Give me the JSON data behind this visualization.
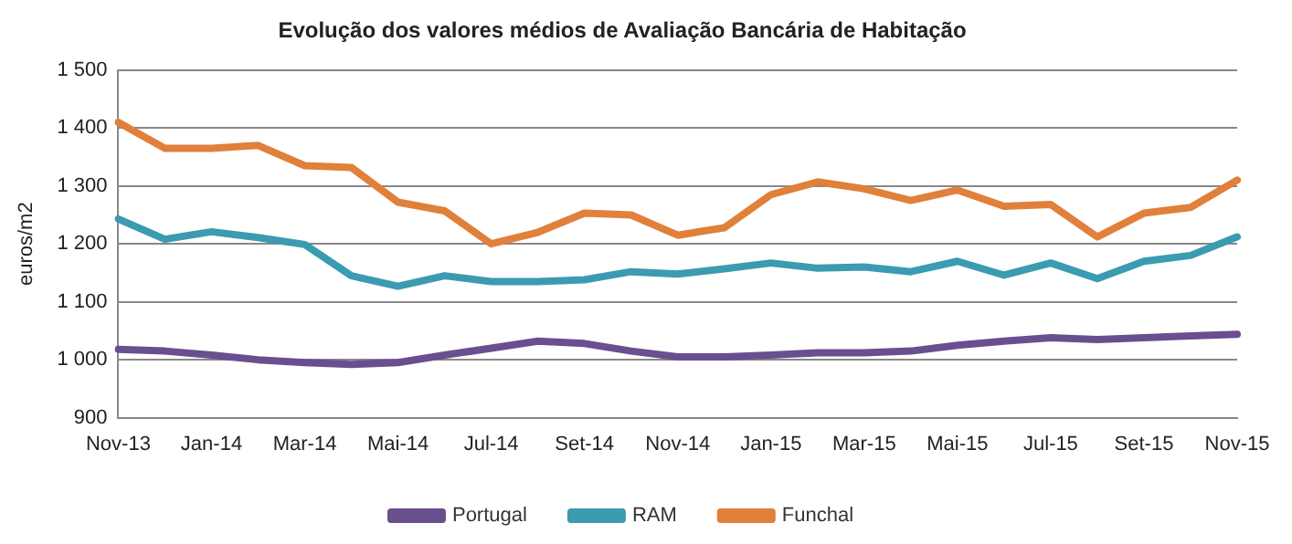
{
  "chart_data": {
    "type": "line",
    "title": "Evolução dos valores médios de Avaliação Bancária de Habitação",
    "ylabel": "euros/m2",
    "categories": [
      "Nov-13",
      null,
      "Jan-14",
      null,
      "Mar-14",
      null,
      "Mai-14",
      null,
      "Jul-14",
      null,
      "Set-14",
      null,
      "Nov-14",
      null,
      "Jan-15",
      null,
      "Mar-15",
      null,
      "Mai-15",
      null,
      "Jul-15",
      null,
      "Set-15",
      null,
      "Nov-15"
    ],
    "series": [
      {
        "name": "Portugal",
        "color": "#6a4f8f",
        "values": [
          1018,
          1015,
          1008,
          1000,
          995,
          992,
          995,
          1008,
          1020,
          1032,
          1028,
          1015,
          1005,
          1005,
          1008,
          1012,
          1012,
          1015,
          1025,
          1032,
          1038,
          1035,
          1038,
          1041,
          1044
        ]
      },
      {
        "name": "RAM",
        "color": "#3b9bb0",
        "values": [
          1243,
          1208,
          1221,
          1211,
          1199,
          1145,
          1127,
          1145,
          1135,
          1135,
          1138,
          1152,
          1148,
          1157,
          1167,
          1158,
          1160,
          1152,
          1170,
          1146,
          1167,
          1140,
          1170,
          1180,
          1212
        ]
      },
      {
        "name": "Funchal",
        "color": "#e0803a",
        "values": [
          1410,
          1365,
          1365,
          1370,
          1335,
          1332,
          1272,
          1257,
          1200,
          1220,
          1253,
          1250,
          1215,
          1228,
          1285,
          1307,
          1295,
          1275,
          1293,
          1265,
          1268,
          1212,
          1253,
          1263,
          1310
        ]
      }
    ],
    "ylim": [
      900,
      1500
    ],
    "yticks": [
      {
        "value": 900,
        "label": "900"
      },
      {
        "value": 1000,
        "label": "1 000"
      },
      {
        "value": 1100,
        "label": "1 100"
      },
      {
        "value": 1200,
        "label": "1 200"
      },
      {
        "value": 1300,
        "label": "1 300"
      },
      {
        "value": 1400,
        "label": "1 400"
      },
      {
        "value": 1500,
        "label": "1 500"
      }
    ],
    "grid": "y",
    "legend": "bottom",
    "marker": "none",
    "line_style": "solid"
  }
}
